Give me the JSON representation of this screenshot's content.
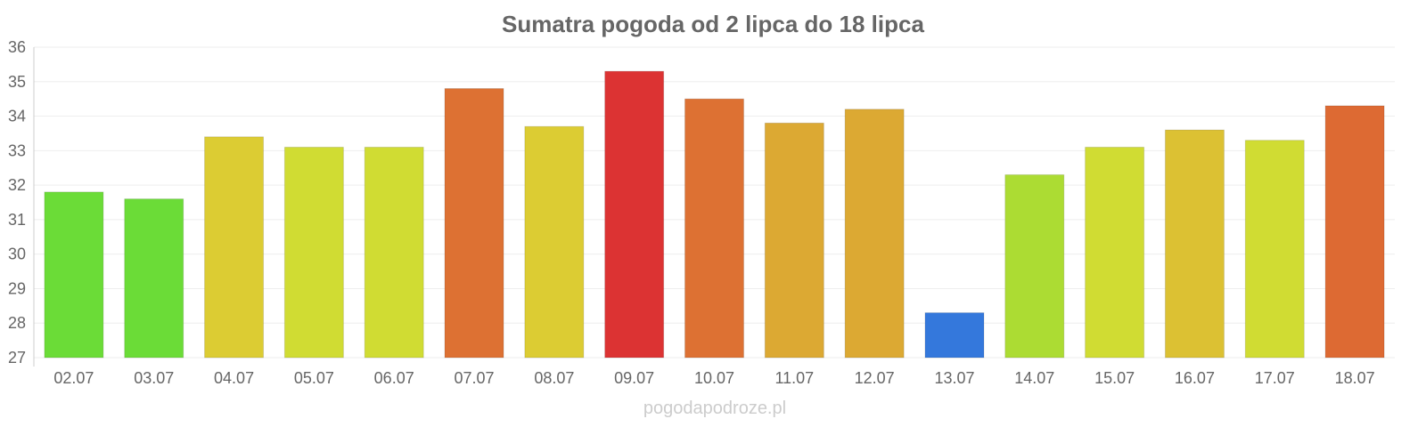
{
  "chart_data": {
    "type": "bar",
    "title": "Sumatra pogoda od 2 lipca do 18 lipca",
    "categories": [
      "02.07",
      "03.07",
      "04.07",
      "05.07",
      "06.07",
      "07.07",
      "08.07",
      "09.07",
      "10.07",
      "11.07",
      "12.07",
      "13.07",
      "14.07",
      "15.07",
      "16.07",
      "17.07",
      "18.07"
    ],
    "values": [
      31.8,
      31.6,
      33.4,
      33.1,
      33.1,
      34.8,
      33.7,
      35.3,
      34.5,
      33.8,
      34.2,
      28.3,
      32.3,
      33.1,
      33.6,
      33.3,
      34.3
    ],
    "colors": [
      "#6bdc37",
      "#6bdc37",
      "#dccc33",
      "#d0dc33",
      "#d0dc33",
      "#dd7133",
      "#dccc33",
      "#dc3333",
      "#dd7133",
      "#dca933",
      "#dca933",
      "#3478dc",
      "#acdc33",
      "#d0dc33",
      "#dcc133",
      "#d0dc33",
      "#dd6a33"
    ],
    "ylim": [
      27,
      36
    ],
    "yticks": [
      "27",
      "28",
      "29",
      "30",
      "31",
      "32",
      "33",
      "34",
      "35",
      "36"
    ],
    "grid": true,
    "legend": "none"
  },
  "footer": "pogodapodroze.pl"
}
